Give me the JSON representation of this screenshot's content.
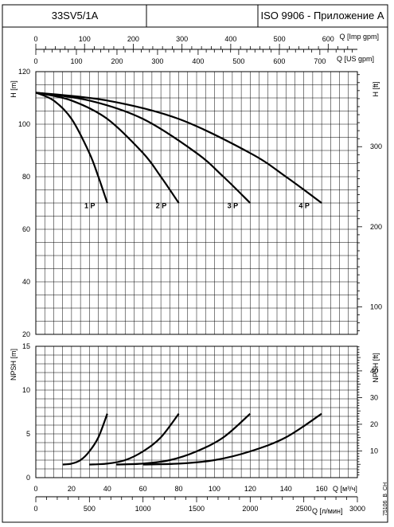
{
  "header": {
    "model": "33SV5/1A",
    "blank": "",
    "standard": "ISO 9906 - Приложение A"
  },
  "side_code": "75106_B_CH",
  "chart_data": [
    {
      "type": "line",
      "name": "head",
      "ylabel_left": "H [m]",
      "ylabel_right": "H [ft]",
      "xlabel_top_imp": "Q [Imp gpm]",
      "xlabel_top_us": "Q [US gpm]",
      "xlim_m3h": [
        0,
        180
      ],
      "ylim": [
        20,
        120
      ],
      "yticks": [
        20,
        40,
        60,
        80,
        100,
        120
      ],
      "yticks_ft": [
        100,
        200,
        300
      ],
      "xticks_imp": [
        0,
        100,
        200,
        300,
        400,
        500,
        600
      ],
      "xticks_us": [
        0,
        100,
        200,
        300,
        400,
        500,
        600,
        700
      ],
      "grid": true,
      "curve_labels": [
        "1 P",
        "2 P",
        "3 P",
        "4 P"
      ],
      "series": [
        {
          "name": "1 P",
          "x": [
            0,
            10,
            20,
            30,
            35,
            40
          ],
          "y": [
            112,
            109,
            102,
            89,
            80,
            70
          ]
        },
        {
          "name": "2 P",
          "x": [
            0,
            20,
            40,
            60,
            70,
            80
          ],
          "y": [
            112,
            109,
            102,
            89,
            80,
            70
          ]
        },
        {
          "name": "3 P",
          "x": [
            0,
            30,
            60,
            90,
            105,
            120
          ],
          "y": [
            112,
            109,
            102,
            89,
            80,
            70
          ]
        },
        {
          "name": "4 P",
          "x": [
            0,
            40,
            80,
            120,
            140,
            160
          ],
          "y": [
            112,
            109,
            102,
            89,
            80,
            70
          ]
        }
      ]
    },
    {
      "type": "line",
      "name": "npsh",
      "ylabel_left": "NPSH [m]",
      "ylabel_right": "NPSH [ft]",
      "xlabel_m3h": "Q [м³/ч]",
      "xlabel_lmin": "Q [л/мин]",
      "xlim_m3h": [
        0,
        180
      ],
      "ylim": [
        0,
        15
      ],
      "yticks": [
        0,
        5,
        10,
        15
      ],
      "yticks_ft": [
        10,
        20,
        30,
        40
      ],
      "xticks_m3h": [
        0,
        20,
        40,
        60,
        80,
        100,
        120,
        140,
        160
      ],
      "xticks_lmin": [
        0,
        500,
        1000,
        1500,
        2000,
        2500,
        3000
      ],
      "grid": true,
      "series": [
        {
          "name": "1 P",
          "x": [
            15,
            20,
            25,
            30,
            35,
            40
          ],
          "y": [
            1.5,
            1.6,
            2.0,
            3.0,
            4.6,
            7.3
          ]
        },
        {
          "name": "2 P",
          "x": [
            30,
            40,
            50,
            60,
            70,
            80
          ],
          "y": [
            1.5,
            1.6,
            2.0,
            3.0,
            4.6,
            7.3
          ]
        },
        {
          "name": "3 P",
          "x": [
            45,
            60,
            75,
            90,
            105,
            120
          ],
          "y": [
            1.5,
            1.6,
            2.0,
            3.0,
            4.6,
            7.3
          ]
        },
        {
          "name": "4 P",
          "x": [
            60,
            80,
            100,
            120,
            140,
            160
          ],
          "y": [
            1.5,
            1.6,
            2.0,
            3.0,
            4.6,
            7.3
          ]
        }
      ]
    }
  ]
}
